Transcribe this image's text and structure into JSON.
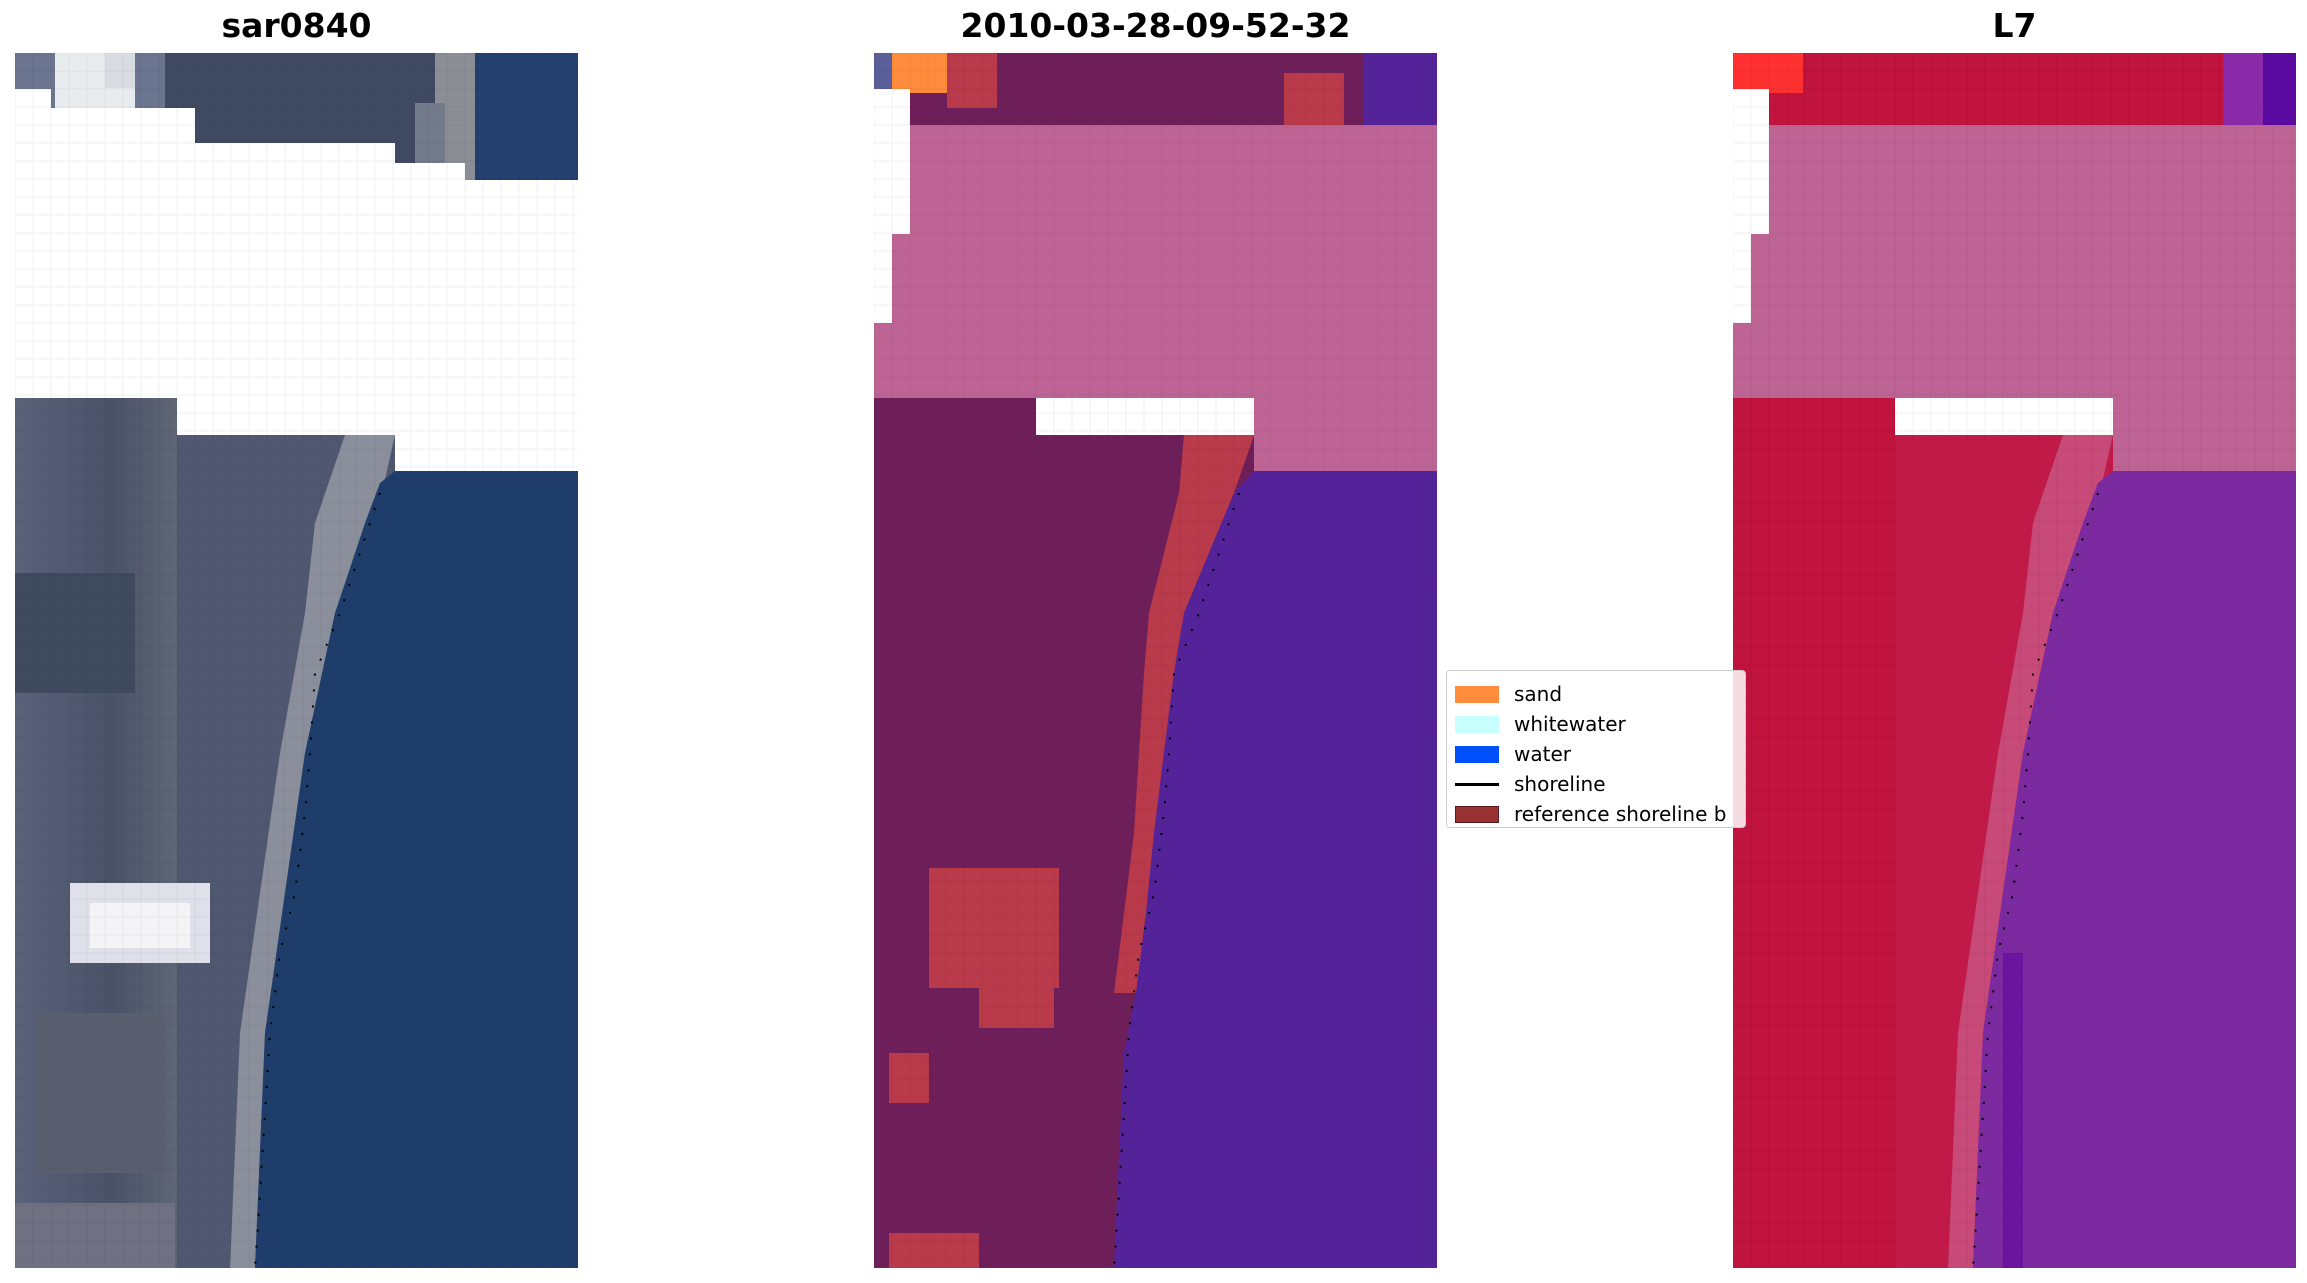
{
  "figure": {
    "panels": [
      {
        "title": "sar0840"
      },
      {
        "title": "2010-03-28-09-52-32"
      },
      {
        "title": "L7"
      }
    ]
  },
  "legend": {
    "items": [
      {
        "label": "sand",
        "color": "#ff8c3c"
      },
      {
        "label": "whitewater",
        "color": "#c8ffff"
      },
      {
        "label": "water",
        "color": "#0050ff"
      },
      {
        "label": "shoreline",
        "color": "#000000"
      },
      {
        "label": "reference shoreline b",
        "color": "#993333"
      }
    ]
  },
  "colors": {
    "rgb_water": "#1e3a66",
    "rgb_land": "#4e5670",
    "rgb_beach": "#9a9aa6",
    "class_land": "#6e1f5a",
    "class_beach": "#b93a4a",
    "class_water": "#54239a",
    "class_cloud_mask": "#bd6495",
    "l7_land": "#c0133e",
    "l7_water": "#7a2aa0",
    "l7_mask": "#bd6495",
    "shoreline": "#000000"
  }
}
